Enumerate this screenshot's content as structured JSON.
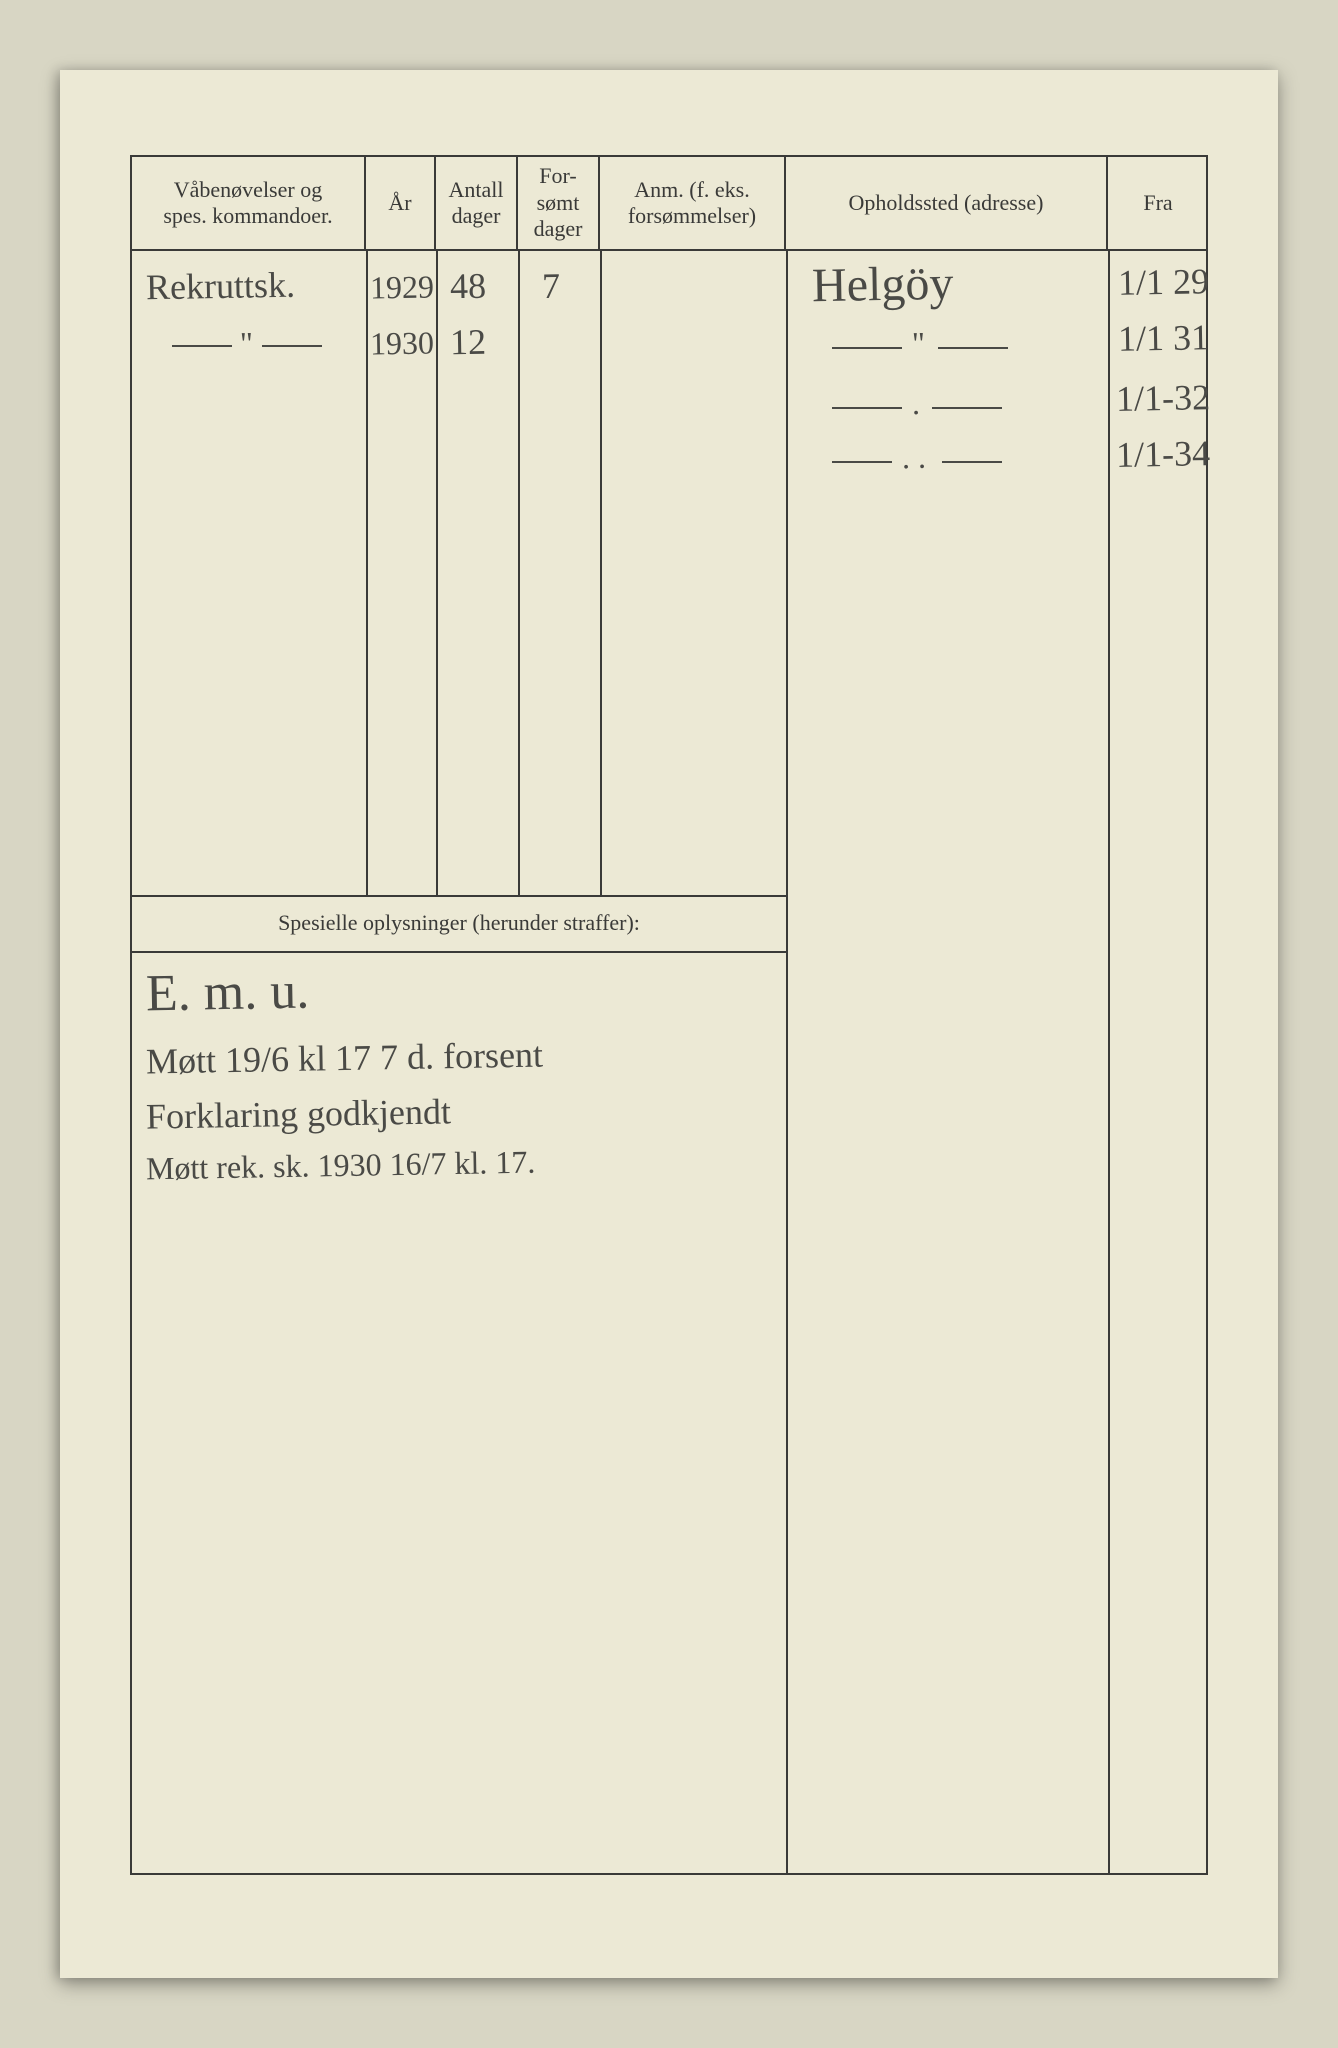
{
  "colors": {
    "page_bg": "#ece9d5",
    "scanner_bg": "#d8d6c4",
    "ink_printed": "#3a3a38",
    "ink_hand": "#4a4a46"
  },
  "form": {
    "columns": [
      {
        "key": "vaben",
        "label": "Våbenøvelser og\nspes. kommandoer."
      },
      {
        "key": "aar",
        "label": "År"
      },
      {
        "key": "antall",
        "label": "Antall\ndager"
      },
      {
        "key": "forsomt",
        "label": "For-\nsømt\ndager"
      },
      {
        "key": "anm",
        "label": "Anm. (f. eks.\nforsømmelser)"
      },
      {
        "key": "opphold",
        "label": "Opholdssted (adresse)"
      },
      {
        "key": "fra",
        "label": "Fra"
      }
    ],
    "special_section_label": "Spesielle oplysninger (herunder straffer):"
  },
  "entries": {
    "rows": [
      {
        "vaben": "Rekruttsk.",
        "aar": "1929",
        "antall": "48",
        "forsomt": "7",
        "opphold": "Helgöy",
        "fra": "1/1 29"
      },
      {
        "vaben": "— \" —",
        "aar": "1930",
        "antall": "12",
        "forsomt": "",
        "opphold": "— \" —",
        "fra": "1/1 31"
      },
      {
        "vaben": "",
        "aar": "",
        "antall": "",
        "forsomt": "",
        "opphold": "— . —",
        "fra": "1/1-32"
      },
      {
        "vaben": "",
        "aar": "",
        "antall": "",
        "forsomt": "",
        "opphold": "— . . —",
        "fra": "1/1-34"
      }
    ]
  },
  "special_notes": {
    "lines": [
      "E. m. u.",
      "Møtt 19/6 kl 17  7 d. forsent",
      "Forklaring godkjendt",
      "Møtt rek. sk. 1930 16/7 kl. 17."
    ]
  }
}
